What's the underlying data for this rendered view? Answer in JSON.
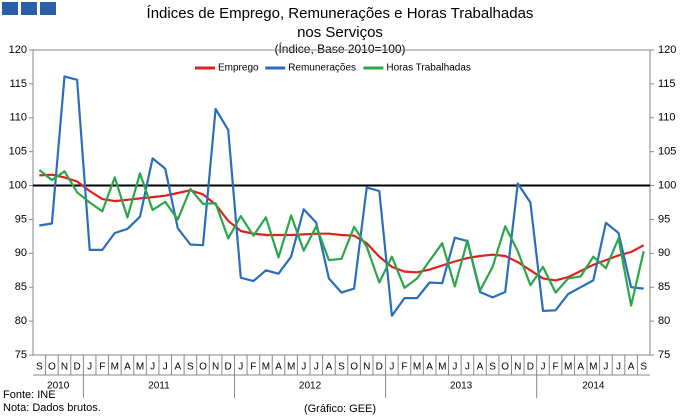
{
  "chart_data": {
    "type": "line",
    "title": "Índices de Emprego, Remunerações e Horas Trabalhadas nos Serviços",
    "subtitle": "(Índice, Base 2010=100)",
    "source": "Fonte: INE",
    "note": "Nota: Dados brutos.",
    "credit": "(Gráfico: GEE)",
    "categories": [
      "S",
      "O",
      "N",
      "D",
      "J",
      "F",
      "M",
      "A",
      "M",
      "J",
      "J",
      "A",
      "S",
      "O",
      "N",
      "D",
      "J",
      "F",
      "M",
      "A",
      "M",
      "J",
      "J",
      "A",
      "S",
      "O",
      "N",
      "D",
      "J",
      "F",
      "M",
      "A",
      "M",
      "J",
      "J",
      "A",
      "S",
      "O",
      "N",
      "D",
      "J",
      "F",
      "M",
      "A",
      "M",
      "J",
      "J",
      "A",
      "S"
    ],
    "years": [
      "2010",
      "2011",
      "2012",
      "2013",
      "2014"
    ],
    "ylim": [
      75,
      120
    ],
    "yticks": [
      75,
      80,
      85,
      90,
      95,
      100,
      105,
      110,
      115,
      120
    ],
    "y2lim": [
      75,
      120
    ],
    "y2ticks": [
      75,
      80,
      85,
      90,
      95,
      100,
      105,
      110,
      115,
      120
    ],
    "reference_line": 100,
    "series": [
      {
        "name": "Emprego",
        "color": "#e0201b",
        "values": [
          101.5,
          101.6,
          101.2,
          100.6,
          99.2,
          98.0,
          97.7,
          97.9,
          98.1,
          98.3,
          98.5,
          98.9,
          99.3,
          98.7,
          97.2,
          94.8,
          93.3,
          92.9,
          92.7,
          92.7,
          92.7,
          92.8,
          92.9,
          92.9,
          92.7,
          92.6,
          91.5,
          89.5,
          88.0,
          87.3,
          87.2,
          87.6,
          88.2,
          88.8,
          89.3,
          89.6,
          89.8,
          89.6,
          88.7,
          87.5,
          86.3,
          86.0,
          86.5,
          87.4,
          88.3,
          89.0,
          89.7,
          90.2,
          91.2
        ]
      },
      {
        "name": "Remunerações",
        "color": "#2a6ebb",
        "values": [
          94.1,
          94.4,
          116.1,
          115.6,
          90.5,
          90.5,
          93.0,
          93.6,
          95.4,
          104.0,
          102.5,
          93.7,
          91.3,
          91.2,
          111.3,
          108.2,
          86.4,
          85.9,
          87.5,
          87.0,
          89.5,
          96.5,
          94.5,
          86.3,
          84.2,
          84.8,
          99.7,
          99.2,
          80.8,
          83.4,
          83.4,
          85.7,
          85.6,
          92.3,
          91.8,
          84.3,
          83.5,
          84.3,
          100.3,
          97.5,
          81.5,
          81.6,
          84.0,
          85.0,
          86.0,
          94.5,
          93.0,
          85.0,
          84.8
        ]
      },
      {
        "name": "Horas Trabalhadas",
        "color": "#2ca64a",
        "values": [
          102.3,
          100.8,
          102.1,
          99.0,
          97.5,
          96.2,
          101.2,
          95.3,
          101.8,
          96.4,
          97.6,
          95.0,
          99.5,
          97.3,
          97.4,
          92.2,
          95.5,
          92.6,
          95.3,
          89.4,
          95.6,
          90.4,
          94.0,
          89.0,
          89.2,
          93.9,
          91.0,
          85.7,
          89.5,
          84.9,
          86.3,
          88.9,
          91.5,
          85.1,
          91.9,
          84.5,
          88.0,
          94.0,
          90.3,
          85.3,
          88.0,
          84.2,
          86.3,
          86.6,
          89.5,
          87.8,
          92.2,
          82.3,
          90.3
        ]
      }
    ]
  }
}
